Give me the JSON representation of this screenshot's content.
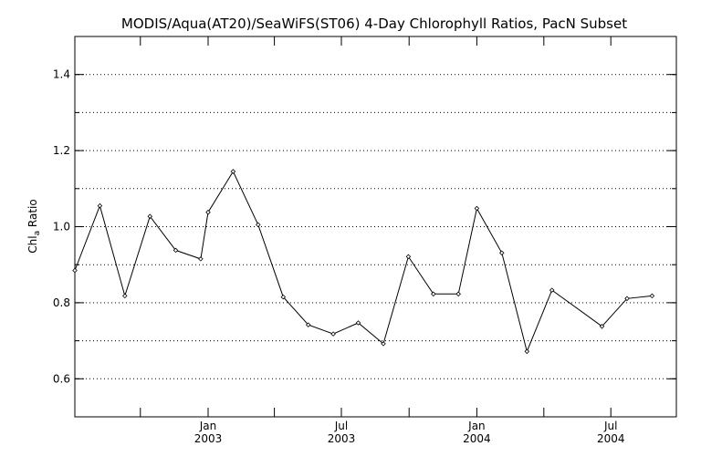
{
  "chart_data": {
    "type": "line",
    "title": "MODIS/Aqua(AT20)/SeaWiFS(ST06) 4-Day Chlorophyll Ratios, PacN Subset",
    "ylabel_main": "Chl",
    "ylabel_sub": "a",
    "ylabel_tail": " Ratio",
    "xlabel": "",
    "ylim": [
      0.5,
      1.5
    ],
    "yticks": [
      {
        "value": 0.6,
        "label": "0.6"
      },
      {
        "value": 0.8,
        "label": "0.8"
      },
      {
        "value": 1.0,
        "label": "1.0"
      },
      {
        "value": 1.2,
        "label": "1.2"
      },
      {
        "value": 1.4,
        "label": "1.4"
      }
    ],
    "grid": true,
    "xlim": [
      "2002-07-04",
      "2004-09-28"
    ],
    "xticks": [
      {
        "date": "2002-10-01",
        "line1": "",
        "line2": ""
      },
      {
        "date": "2003-01-01",
        "line1": "Jan",
        "line2": "2003"
      },
      {
        "date": "2003-04-01",
        "line1": "",
        "line2": ""
      },
      {
        "date": "2003-07-01",
        "line1": "Jul",
        "line2": "2003"
      },
      {
        "date": "2003-10-01",
        "line1": "",
        "line2": ""
      },
      {
        "date": "2004-01-01",
        "line1": "Jan",
        "line2": "2004"
      },
      {
        "date": "2004-04-01",
        "line1": "",
        "line2": ""
      },
      {
        "date": "2004-07-01",
        "line1": "Jul",
        "line2": "2004"
      }
    ],
    "series": [
      {
        "points": [
          {
            "x": "2002-07-04",
            "y": 0.885
          },
          {
            "x": "2002-08-07",
            "y": 1.055
          },
          {
            "x": "2002-09-10",
            "y": 0.818
          },
          {
            "x": "2002-10-14",
            "y": 1.027
          },
          {
            "x": "2002-11-18",
            "y": 0.938
          },
          {
            "x": "2002-12-22",
            "y": 0.915
          },
          {
            "x": "2003-01-01",
            "y": 1.038
          },
          {
            "x": "2003-02-04",
            "y": 1.145
          },
          {
            "x": "2003-03-10",
            "y": 1.005
          },
          {
            "x": "2003-04-13",
            "y": 0.815
          },
          {
            "x": "2003-05-17",
            "y": 0.742
          },
          {
            "x": "2003-06-20",
            "y": 0.718
          },
          {
            "x": "2003-07-24",
            "y": 0.747
          },
          {
            "x": "2003-08-27",
            "y": 0.692
          },
          {
            "x": "2003-09-30",
            "y": 0.921
          },
          {
            "x": "2003-11-03",
            "y": 0.823
          },
          {
            "x": "2003-12-07",
            "y": 0.823
          },
          {
            "x": "2004-01-01",
            "y": 1.048
          },
          {
            "x": "2004-02-04",
            "y": 0.931
          },
          {
            "x": "2004-03-09",
            "y": 0.672
          },
          {
            "x": "2004-04-12",
            "y": 0.833
          },
          {
            "x": "2004-06-19",
            "y": 0.738
          },
          {
            "x": "2004-07-23",
            "y": 0.811
          },
          {
            "x": "2004-08-26",
            "y": 0.818
          }
        ]
      }
    ]
  }
}
